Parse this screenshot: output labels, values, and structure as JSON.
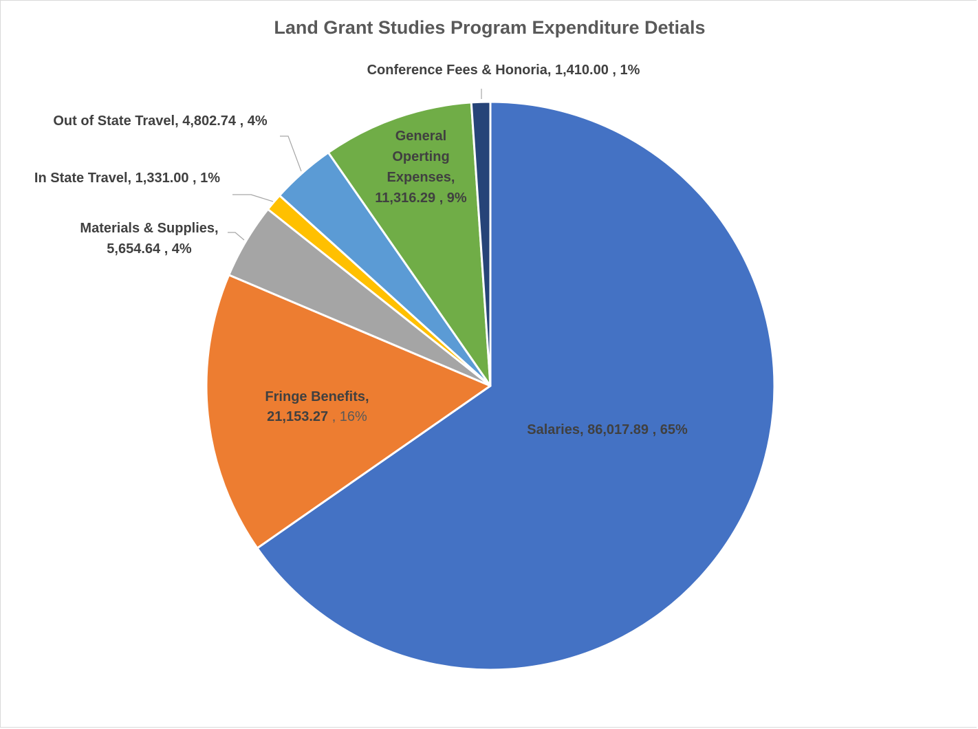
{
  "chart_data": {
    "type": "pie",
    "title": "Land Grant Studies Program Expenditure Detials",
    "start_angle_deg": 0,
    "direction": "clockwise",
    "legend": "none",
    "slices": [
      {
        "name": "Salaries",
        "value": 86017.89,
        "value_label": "86,017.89",
        "percent_label": "65%",
        "color": "#4472C4"
      },
      {
        "name": "Fringe Benefits",
        "value": 21153.27,
        "value_label": "21,153.27",
        "percent_label": "16%",
        "color": "#ED7D31"
      },
      {
        "name": "Materials & Supplies",
        "value": 5654.64,
        "value_label": "5,654.64",
        "percent_label": "4%",
        "color": "#A5A5A5"
      },
      {
        "name": "In State Travel",
        "value": 1331.0,
        "value_label": "1,331.00",
        "percent_label": "1%",
        "color": "#FFC000"
      },
      {
        "name": "Out of State Travel",
        "value": 4802.74,
        "value_label": "4,802.74",
        "percent_label": "4%",
        "color": "#5B9BD5"
      },
      {
        "name": "General Operting Expenses",
        "value": 11316.29,
        "value_label": "11,316.29",
        "percent_label": "9%",
        "color": "#70AD47"
      },
      {
        "name": "Conference Fees & Honoria",
        "value": 1410.0,
        "value_label": "1,410.00",
        "percent_label": "1%",
        "color": "#264478"
      }
    ],
    "data_labels": {
      "salaries": {
        "l1": "Salaries,  86,017.89 , 65%"
      },
      "fringe": {
        "l1": "Fringe Benefits,",
        "l2a": "21,153.27",
        "l2b": " , 16%"
      },
      "materials": {
        "l1": "Materials & Supplies,",
        "l2": "5,654.64 , 4%"
      },
      "in_state": {
        "l1": "In State Travel,  1,331.00 , 1%"
      },
      "out_state": {
        "l1": "Out of State Travel,  4,802.74 , 4%"
      },
      "general": {
        "l1": "General",
        "l2": "Operting",
        "l3": "Expenses,",
        "l4": "11,316.29 , 9%"
      },
      "conference": {
        "l1": "Conference Fees & Honoria,  1,410.00 , 1%"
      }
    }
  }
}
